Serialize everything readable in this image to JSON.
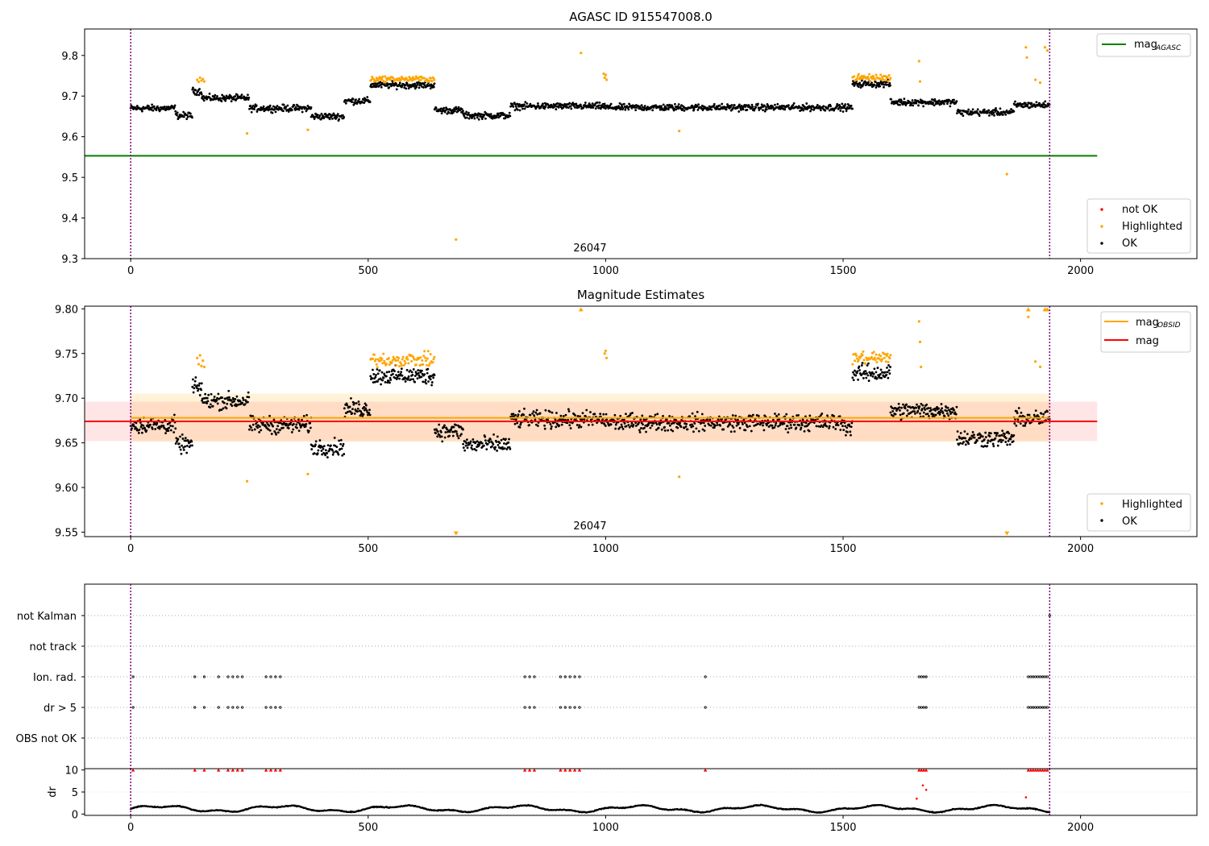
{
  "chart_data": [
    {
      "type": "scatter",
      "title": "AGASC ID 915547008.0",
      "xlim": [
        -97,
        2245
      ],
      "ylim": [
        9.3,
        9.865
      ],
      "yticks": [
        "9.3",
        "9.4",
        "9.5",
        "9.6",
        "9.7",
        "9.8"
      ],
      "xticks": [
        "0",
        "500",
        "1000",
        "1500",
        "2000"
      ],
      "annotation": "26047",
      "vlines": [
        0,
        1935
      ],
      "hline": {
        "value": 9.553,
        "xmin": -97,
        "xmax": 2035,
        "color": "#008000"
      },
      "legend_top": [
        {
          "label": "mag",
          "subscript": "AGASC",
          "color": "#008000"
        }
      ],
      "legend_bottom": [
        {
          "label": "not OK",
          "color": "#ff0000"
        },
        {
          "label": "Highlighted",
          "color": "#ffa500"
        },
        {
          "label": "OK",
          "color": "#000000"
        }
      ],
      "series": [
        {
          "name": "OK",
          "color": "#000000",
          "segments": [
            [
              0,
              95,
              9.67
            ],
            [
              95,
              130,
              9.652
            ],
            [
              130,
              150,
              9.712
            ],
            [
              150,
              250,
              9.695
            ],
            [
              250,
              380,
              9.67
            ],
            [
              380,
              450,
              9.65
            ],
            [
              450,
              505,
              9.688
            ],
            [
              505,
              640,
              9.727
            ],
            [
              640,
              700,
              9.665
            ],
            [
              700,
              800,
              9.652
            ],
            [
              800,
              1000,
              9.675
            ],
            [
              1000,
              1500,
              9.672
            ],
            [
              1500,
              1520,
              9.672
            ],
            [
              1520,
              1600,
              9.73
            ],
            [
              1600,
              1740,
              9.685
            ],
            [
              1740,
              1860,
              9.66
            ],
            [
              1860,
              1935,
              9.678
            ]
          ]
        },
        {
          "name": "Highlighted",
          "color": "#ffa500",
          "points": [
            [
              140,
              9.74
            ],
            [
              143,
              9.735
            ],
            [
              146,
              9.745
            ],
            [
              149,
              9.738
            ],
            [
              152,
              9.742
            ],
            [
              155,
              9.736
            ],
            [
              245,
              9.608
            ],
            [
              373,
              9.617
            ],
            [
              685,
              9.347
            ],
            [
              948,
              9.806
            ],
            [
              996,
              9.755
            ],
            [
              998,
              9.745
            ],
            [
              1000,
              9.752
            ],
            [
              1002,
              9.74
            ],
            [
              1155,
              9.614
            ],
            [
              1660,
              9.786
            ],
            [
              1662,
              9.736
            ],
            [
              1845,
              9.508
            ],
            [
              1885,
              9.82
            ],
            [
              1887,
              9.795
            ],
            [
              1905,
              9.74
            ],
            [
              1915,
              9.733
            ],
            [
              1925,
              9.82
            ],
            [
              1930,
              9.812
            ]
          ],
          "clusters": [
            [
              505,
              640,
              9.742,
              0.01
            ],
            [
              1520,
              1600,
              9.745,
              0.012
            ]
          ]
        }
      ]
    },
    {
      "type": "scatter",
      "title": "Magnitude Estimates",
      "xlim": [
        -97,
        2245
      ],
      "ylim": [
        9.545,
        9.803
      ],
      "yticks": [
        "9.55",
        "9.60",
        "9.65",
        "9.70",
        "9.75",
        "9.80"
      ],
      "xticks": [
        "0",
        "500",
        "1000",
        "1500",
        "2000"
      ],
      "annotation": "26047",
      "vlines": [
        0,
        1935
      ],
      "bands": [
        {
          "y0": 9.652,
          "y1": 9.696,
          "xmin": -97,
          "xmax": 2035,
          "color": "#ff0000",
          "opacity": 0.1
        },
        {
          "y0": 9.651,
          "y1": 9.705,
          "xmin": 0,
          "xmax": 1935,
          "color": "#ffa500",
          "opacity": 0.15
        }
      ],
      "lines": [
        {
          "name": "mag_OBSID",
          "value": 9.678,
          "xmin": 0,
          "xmax": 1935,
          "color": "#ffa500"
        },
        {
          "name": "mag",
          "value": 9.674,
          "xmin": -97,
          "xmax": 2035,
          "color": "#ff0000"
        }
      ],
      "legend_top": [
        {
          "label": "mag",
          "subscript": "OBSID",
          "color": "#ffa500"
        },
        {
          "label": "mag",
          "subscript": "",
          "color": "#ff0000"
        }
      ],
      "legend_bottom": [
        {
          "label": "Highlighted",
          "color": "#ffa500"
        },
        {
          "label": "OK",
          "color": "#000000"
        }
      ],
      "series": [
        {
          "name": "OK",
          "color": "#000000",
          "segments": [
            [
              0,
              95,
              9.67
            ],
            [
              95,
              130,
              9.648
            ],
            [
              130,
              150,
              9.712
            ],
            [
              150,
              250,
              9.697
            ],
            [
              250,
              380,
              9.67
            ],
            [
              380,
              450,
              9.645
            ],
            [
              450,
              505,
              9.688
            ],
            [
              505,
              640,
              9.725
            ],
            [
              640,
              700,
              9.663
            ],
            [
              700,
              800,
              9.648
            ],
            [
              800,
              1000,
              9.676
            ],
            [
              1000,
              1500,
              9.673
            ],
            [
              1500,
              1520,
              9.668
            ],
            [
              1520,
              1600,
              9.728
            ],
            [
              1600,
              1740,
              9.686
            ],
            [
              1740,
              1860,
              9.655
            ],
            [
              1860,
              1935,
              9.677
            ]
          ]
        },
        {
          "name": "Highlighted",
          "color": "#ffa500",
          "points": [
            [
              140,
              9.745
            ],
            [
              143,
              9.738
            ],
            [
              146,
              9.748
            ],
            [
              149,
              9.736
            ],
            [
              152,
              9.742
            ],
            [
              155,
              9.735
            ],
            [
              245,
              9.607
            ],
            [
              373,
              9.615
            ],
            [
              1000,
              9.753
            ],
            [
              1002,
              9.745
            ],
            [
              998,
              9.75
            ],
            [
              1155,
              9.612
            ],
            [
              1660,
              9.786
            ],
            [
              1662,
              9.763
            ],
            [
              1664,
              9.735
            ],
            [
              1890,
              9.791
            ],
            [
              1905,
              9.741
            ],
            [
              1915,
              9.735
            ]
          ],
          "triangles_up": [
            [
              948,
              9.8
            ],
            [
              1890,
              9.8
            ],
            [
              1925,
              9.8
            ],
            [
              1930,
              9.8
            ]
          ],
          "triangles_down": [
            [
              685,
              9.548
            ],
            [
              1845,
              9.548
            ]
          ],
          "clusters": [
            [
              505,
              640,
              9.743,
              0.011
            ],
            [
              1520,
              1600,
              9.745,
              0.012
            ]
          ]
        }
      ]
    },
    {
      "type": "scatter",
      "title": "",
      "xlim": [
        -97,
        2245
      ],
      "rows": [
        "not Kalman",
        "not track",
        "Ion. rad.",
        "dr > 5",
        "OBS not OK"
      ],
      "vlines": [
        0,
        1935
      ],
      "xticks": [
        "0",
        "500",
        "1000",
        "1500",
        "2000"
      ],
      "flag_points": {
        "not Kalman": [
          1935
        ],
        "Ion. rad.": [
          5,
          135,
          155,
          185,
          205,
          215,
          225,
          235,
          285,
          295,
          305,
          315,
          830,
          840,
          850,
          905,
          915,
          925,
          935,
          945,
          1210,
          1660,
          1665,
          1670,
          1675,
          1890,
          1895,
          1900,
          1905,
          1910,
          1915,
          1920,
          1925,
          1930
        ],
        "dr > 5": [
          5,
          135,
          155,
          185,
          205,
          215,
          225,
          235,
          285,
          295,
          305,
          315,
          830,
          840,
          850,
          905,
          915,
          925,
          935,
          945,
          1210,
          1660,
          1665,
          1670,
          1675,
          1890,
          1895,
          1900,
          1905,
          1910,
          1915,
          1920,
          1925,
          1930
        ]
      }
    },
    {
      "type": "scatter",
      "title": "",
      "ylabel": "dr",
      "xlim": [
        -97,
        2245
      ],
      "ylim": [
        -0.3,
        10.3
      ],
      "yticks": [
        "0",
        "5",
        "10"
      ],
      "xticks": [
        "0",
        "500",
        "1000",
        "1500",
        "2000"
      ],
      "vlines": [
        0,
        1935
      ],
      "series": [
        {
          "name": "dr",
          "color": "#000000",
          "baseline": 1.2
        },
        {
          "name": "dr clipped",
          "color": "#ff0000",
          "marker": "triangle",
          "x": [
            5,
            135,
            155,
            185,
            205,
            215,
            225,
            235,
            285,
            295,
            305,
            315,
            830,
            840,
            850,
            905,
            915,
            925,
            935,
            945,
            1210,
            1660,
            1665,
            1670,
            1675,
            1890,
            1895,
            1900,
            1905,
            1910,
            1915,
            1920,
            1925,
            1930
          ],
          "y": 10
        },
        {
          "name": "dr high",
          "color": "#ff0000",
          "points": [
            [
              1655,
              3.5
            ],
            [
              1668,
              6.5
            ],
            [
              1675,
              5.5
            ],
            [
              1885,
              3.8
            ]
          ]
        }
      ]
    }
  ]
}
